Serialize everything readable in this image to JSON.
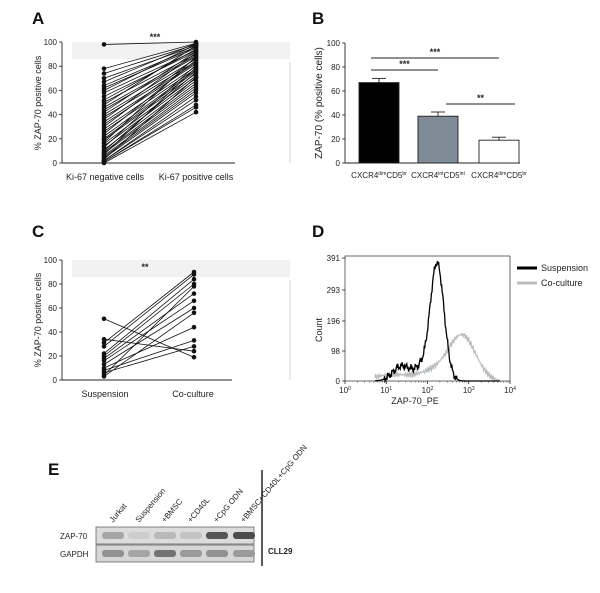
{
  "panels": {
    "A": "A",
    "B": "B",
    "C": "C",
    "D": "D",
    "E": "E"
  },
  "chart_data": [
    {
      "panel": "A",
      "type": "line",
      "ylabel": "% ZAP-70 positive cells",
      "categories": [
        "Ki-67 negative cells",
        "Ki-67 positive cells"
      ],
      "ylim": [
        0,
        100
      ],
      "yticks": [
        "0",
        "20",
        "40",
        "60",
        "80",
        "100"
      ],
      "significance": "***",
      "pairs": [
        [
          98,
          100
        ],
        [
          78,
          99
        ],
        [
          74,
          98
        ],
        [
          70,
          97
        ],
        [
          67,
          99
        ],
        [
          64,
          96
        ],
        [
          62,
          95
        ],
        [
          60,
          98
        ],
        [
          58,
          93
        ],
        [
          55,
          92
        ],
        [
          52,
          94
        ],
        [
          50,
          90
        ],
        [
          48,
          97
        ],
        [
          46,
          89
        ],
        [
          44,
          88
        ],
        [
          42,
          92
        ],
        [
          40,
          86
        ],
        [
          38,
          84
        ],
        [
          36,
          91
        ],
        [
          34,
          83
        ],
        [
          32,
          82
        ],
        [
          30,
          87
        ],
        [
          28,
          80
        ],
        [
          26,
          78
        ],
        [
          24,
          85
        ],
        [
          22,
          77
        ],
        [
          20,
          76
        ],
        [
          19,
          74
        ],
        [
          17,
          88
        ],
        [
          16,
          72
        ],
        [
          14,
          70
        ],
        [
          13,
          81
        ],
        [
          11,
          68
        ],
        [
          10,
          75
        ],
        [
          9,
          66
        ],
        [
          8,
          64
        ],
        [
          7,
          79
        ],
        [
          6,
          62
        ],
        [
          5,
          60
        ],
        [
          4,
          58
        ],
        [
          3,
          71
        ],
        [
          2,
          55
        ],
        [
          2,
          52
        ],
        [
          1,
          48
        ],
        [
          1,
          46
        ],
        [
          0,
          42
        ]
      ]
    },
    {
      "panel": "B",
      "type": "bar",
      "ylabel": "ZAP-70 (% positive cells)",
      "ylim": [
        0,
        100
      ],
      "yticks": [
        "0",
        "20",
        "40",
        "60",
        "80",
        "100"
      ],
      "categories": [
        {
          "base": "CXCR4",
          "sup": "dim",
          "mid": "CD5",
          "sup2": "br"
        },
        {
          "base": "CXCR4",
          "sup": "int",
          "mid": "CD5",
          "sup2": "int"
        },
        {
          "base": "CXCR4",
          "sup": "dim",
          "mid": "CD5",
          "sup2": "br"
        }
      ],
      "values": [
        67,
        39,
        19
      ],
      "errors": [
        3.5,
        3.5,
        2.5
      ],
      "colors": [
        "#000000",
        "#7f8b96",
        "#ffffff"
      ],
      "significance": [
        {
          "from": 0,
          "to": 1,
          "label": "***"
        },
        {
          "from": 0,
          "to": 2,
          "label": "***"
        },
        {
          "from": 1,
          "to": 2,
          "label": "**"
        }
      ]
    },
    {
      "panel": "C",
      "type": "line",
      "ylabel": "% ZAP-70 positive cells",
      "categories": [
        "Suspension",
        "Co-culture"
      ],
      "ylim": [
        0,
        100
      ],
      "yticks": [
        "0",
        "20",
        "40",
        "60",
        "80",
        "100"
      ],
      "significance": "**",
      "pairs": [
        [
          51,
          19
        ],
        [
          34,
          24
        ],
        [
          31,
          90
        ],
        [
          28,
          88
        ],
        [
          22,
          84
        ],
        [
          20,
          80
        ],
        [
          18,
          72
        ],
        [
          16,
          66
        ],
        [
          13,
          60
        ],
        [
          10,
          44
        ],
        [
          8,
          33
        ],
        [
          6,
          28
        ],
        [
          4,
          78
        ],
        [
          3,
          56
        ]
      ]
    },
    {
      "panel": "D",
      "type": "area",
      "ylabel": "Count",
      "xlabel": "ZAP-70_PE",
      "yticks": [
        "0",
        "98",
        "196",
        "293",
        "391"
      ],
      "xticks": [
        {
          "base": "10",
          "exp": "0"
        },
        {
          "base": "10",
          "exp": "1"
        },
        {
          "base": "10",
          "exp": "2"
        },
        {
          "base": "10",
          "exp": "3"
        },
        {
          "base": "10",
          "exp": "4"
        }
      ],
      "legend": [
        "Suspension",
        "Co-culture"
      ],
      "series_colors": [
        "#000000",
        "#b8bcbf"
      ]
    }
  ],
  "blot": {
    "lanes": [
      "Jurkat",
      "Suspension",
      "+BMSC",
      "+CD40L",
      "+CpG ODN",
      "+BMSC+CD40L+CpG ODN"
    ],
    "rows": [
      "ZAP-70",
      "GAPDH"
    ],
    "cell_line": "CLL29"
  }
}
